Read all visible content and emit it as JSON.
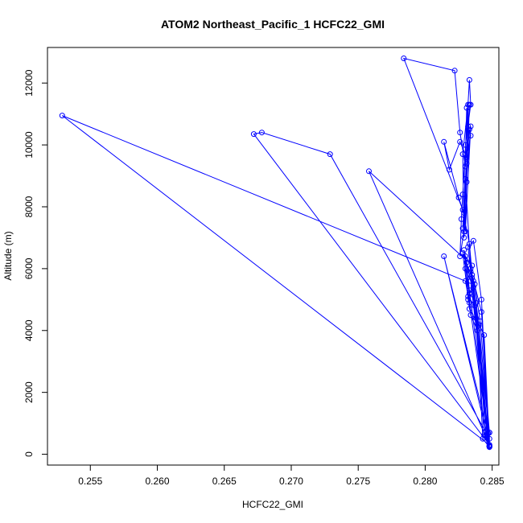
{
  "chart_data": {
    "type": "scatter",
    "title": "ATOM2 Northeast_Pacific_1 HCFC22_GMI",
    "xlabel": "HCFC22_GMI",
    "ylabel": "Altitude (m)",
    "xlim": [
      0.2518,
      0.2855
    ],
    "ylim": [
      -350,
      13150
    ],
    "xticks": [
      0.255,
      0.26,
      0.265,
      0.27,
      0.275,
      0.28,
      0.285
    ],
    "xtick_labels": [
      "0.255",
      "0.260",
      "0.265",
      "0.270",
      "0.275",
      "0.280",
      "0.285"
    ],
    "yticks": [
      0,
      2000,
      4000,
      6000,
      8000,
      10000,
      12000
    ],
    "ytick_labels": [
      "0",
      "2000",
      "4000",
      "6000",
      "8000",
      "10000",
      "12000"
    ],
    "series_color": "#0000ff",
    "grid": false,
    "lines_connect_points": true,
    "x": [
      0.2848,
      0.2848,
      0.2841,
      0.2837,
      0.2835,
      0.2842,
      0.2848,
      0.2845,
      0.2838,
      0.2833,
      0.283,
      0.2836,
      0.2848,
      0.2846,
      0.284,
      0.2833,
      0.2829,
      0.2834,
      0.2848,
      0.2844,
      0.2837,
      0.2832,
      0.2828,
      0.2835,
      0.2848,
      0.2843,
      0.2839,
      0.2834,
      0.2831,
      0.2833,
      0.2848,
      0.2847,
      0.2842,
      0.2836,
      0.2832,
      0.2834,
      0.2848,
      0.2844,
      0.2838,
      0.2833,
      0.2828,
      0.2825,
      0.2814,
      0.2818,
      0.2826,
      0.2831,
      0.2834,
      0.2833,
      0.2831,
      0.2828,
      0.2834,
      0.283,
      0.2832,
      0.2828,
      0.2829,
      0.2831,
      0.2833,
      0.283,
      0.2826,
      0.2822,
      0.2784,
      0.2829,
      0.2831,
      0.2832,
      0.283,
      0.2834,
      0.2833,
      0.2828,
      0.2827,
      0.2826,
      0.2829,
      0.283,
      0.2834,
      0.2848,
      0.284,
      0.2836,
      0.2832,
      0.283,
      0.2835,
      0.2758,
      0.2848,
      0.2814,
      0.2848,
      0.2729,
      0.2678,
      0.2672,
      0.2848,
      0.2529,
      0.283,
      0.2833,
      0.2848
    ],
    "y": [
      250,
      700,
      4300,
      5500,
      5800,
      4600,
      260,
      600,
      4900,
      5200,
      6000,
      5400,
      240,
      550,
      4150,
      4700,
      6600,
      5600,
      270,
      620,
      4800,
      5100,
      6500,
      5700,
      230,
      500,
      4000,
      4500,
      6200,
      5300,
      260,
      680,
      5000,
      6900,
      6700,
      5900,
      250,
      3850,
      4400,
      6800,
      7900,
      8300,
      10100,
      9200,
      10100,
      9600,
      10300,
      10500,
      9400,
      7300,
      10600,
      7200,
      11300,
      9700,
      7000,
      8800,
      11300,
      9300,
      10400,
      12400,
      12800,
      7800,
      11200,
      10600,
      10000,
      11300,
      12100,
      8400,
      7600,
      6400,
      7200,
      8900,
      6000,
      700,
      4200,
      5600,
      5000,
      6400,
      6100,
      9150,
      300,
      6400,
      500,
      9700,
      10400,
      10350,
      300,
      10950,
      5600,
      4900,
      250
    ]
  }
}
